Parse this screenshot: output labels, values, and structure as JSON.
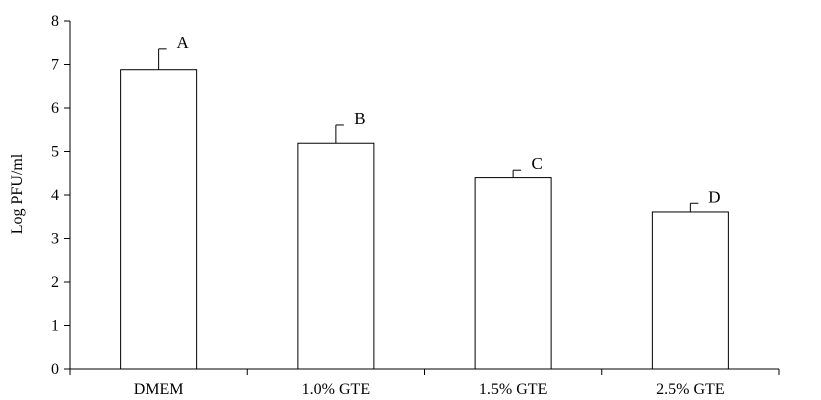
{
  "chart_data": {
    "type": "bar",
    "title": "",
    "xlabel": "",
    "ylabel": "Log PFU/ml",
    "ylim": [
      0,
      8
    ],
    "yticks": [
      0,
      1,
      2,
      3,
      4,
      5,
      6,
      7,
      8
    ],
    "grid": false,
    "categories": [
      "DMEM",
      "1.0% GTE",
      "1.5% GTE",
      "2.5% GTE"
    ],
    "values": [
      6.88,
      5.19,
      4.4,
      3.61
    ],
    "error_upper": [
      0.48,
      0.42,
      0.17,
      0.2
    ],
    "annotations": [
      "A",
      "B",
      "C",
      "D"
    ],
    "colors": {
      "bar_fill": "#ffffff",
      "bar_stroke": "#000000"
    }
  }
}
